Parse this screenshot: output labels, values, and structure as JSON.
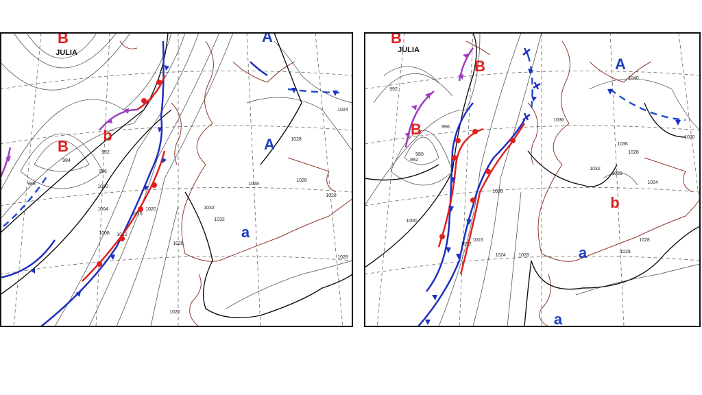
{
  "maps": [
    {
      "pressure_centers": [
        "B",
        "B",
        "b",
        "A",
        "A",
        "a"
      ],
      "storm_name": "JULIA",
      "isobar_labels": [
        984,
        988,
        992,
        996,
        1000,
        1004,
        1008,
        1012,
        1016,
        1020,
        1028,
        1032,
        1032,
        1028,
        1028,
        1028,
        1028,
        1024,
        1028,
        1020
      ]
    },
    {
      "pressure_centers": [
        "B",
        "B",
        "B",
        "A",
        "b",
        "a",
        "a"
      ],
      "storm_name": "JULIA",
      "isobar_labels": [
        992,
        996,
        988,
        992,
        1000,
        1012,
        1016,
        1020,
        1024,
        1028,
        1036,
        1040,
        1036,
        1028,
        1032,
        1028,
        1024,
        1028,
        1028,
        1020
      ]
    }
  ]
}
